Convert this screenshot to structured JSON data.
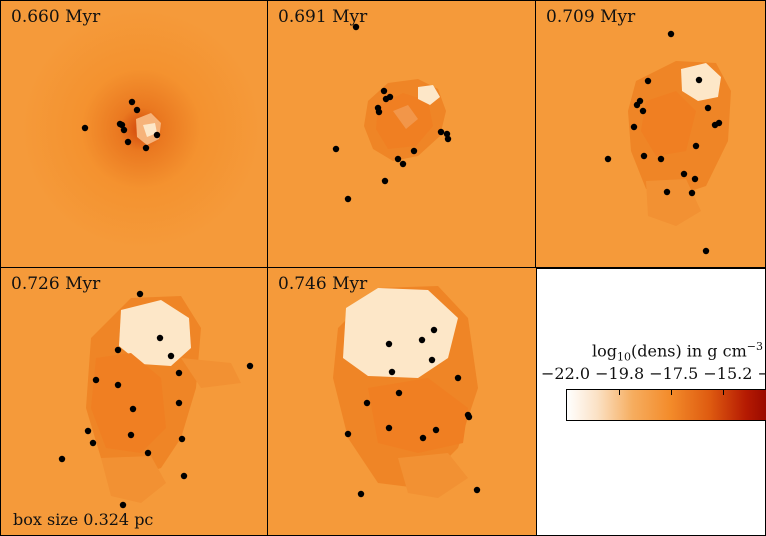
{
  "panels": [
    {
      "time": "0.660 Myr"
    },
    {
      "time": "0.691 Myr"
    },
    {
      "time": "0.709 Myr"
    },
    {
      "time": "0.726 Myr"
    },
    {
      "time": "0.746 Myr"
    }
  ],
  "scale_label": "box size 0.324 pc",
  "colorbar": {
    "label_main": "log",
    "label_sub": "10",
    "label_rest": "(dens) in g cm",
    "label_sup": "−3",
    "ticks": [
      "−22.0",
      "−19.8",
      "−17.5",
      "−15.2",
      "−"
    ],
    "colors": [
      "#ffffff",
      "#fbe2c6",
      "#f6ad5f",
      "#f38b2a",
      "#de5a10",
      "#b51a02",
      "#9a0a00"
    ]
  },
  "colors": {
    "background_density": "#f59a3a",
    "bubble": "#fde7c8",
    "sink_particles": "#000000"
  }
}
